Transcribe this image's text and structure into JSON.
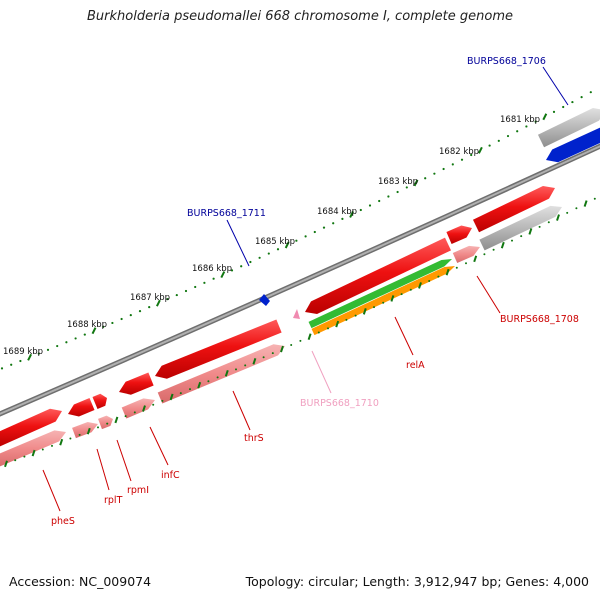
{
  "title": "Burkholderia pseudomallei 668 chromosome I, complete genome",
  "footer": {
    "accession": "Accession: NC_009074",
    "topology": "Topology: circular; Length: 3,912,947 bp; Genes: 4,000"
  },
  "colors": {
    "backbone": "#8c8c8c",
    "gene_red": "#ee1111",
    "gene_pink": "#f08a8a",
    "gene_blue": "#0022cc",
    "gene_gray": "#b8b8b8",
    "gene_green": "#33bb33",
    "gene_orange": "#ff9900",
    "label_red": "#cc0000",
    "label_blue": "#000099",
    "label_pink": "#f0a0c0",
    "ticks": "#117711"
  },
  "scale": [
    {
      "label": "1681 kbp"
    },
    {
      "label": "1682 kbp"
    },
    {
      "label": "1683 kbp"
    },
    {
      "label": "1684 kbp"
    },
    {
      "label": "1685 kbp"
    },
    {
      "label": "1686 kbp"
    },
    {
      "label": "1687 kbp"
    },
    {
      "label": "1688 kbp"
    },
    {
      "label": "1689 kbp"
    }
  ],
  "gene_labels": [
    {
      "text": "BURPS668_1706",
      "color": "blue"
    },
    {
      "text": "BURPS668_1711",
      "color": "blue"
    },
    {
      "text": "BURPS668_1708",
      "color": "red"
    },
    {
      "text": "relA",
      "color": "red"
    },
    {
      "text": "BURPS668_1710",
      "color": "pink"
    },
    {
      "text": "thrS",
      "color": "red"
    },
    {
      "text": "infC",
      "color": "red"
    },
    {
      "text": "rpmI",
      "color": "red"
    },
    {
      "text": "rplT",
      "color": "red"
    },
    {
      "text": "pheS",
      "color": "red"
    }
  ]
}
